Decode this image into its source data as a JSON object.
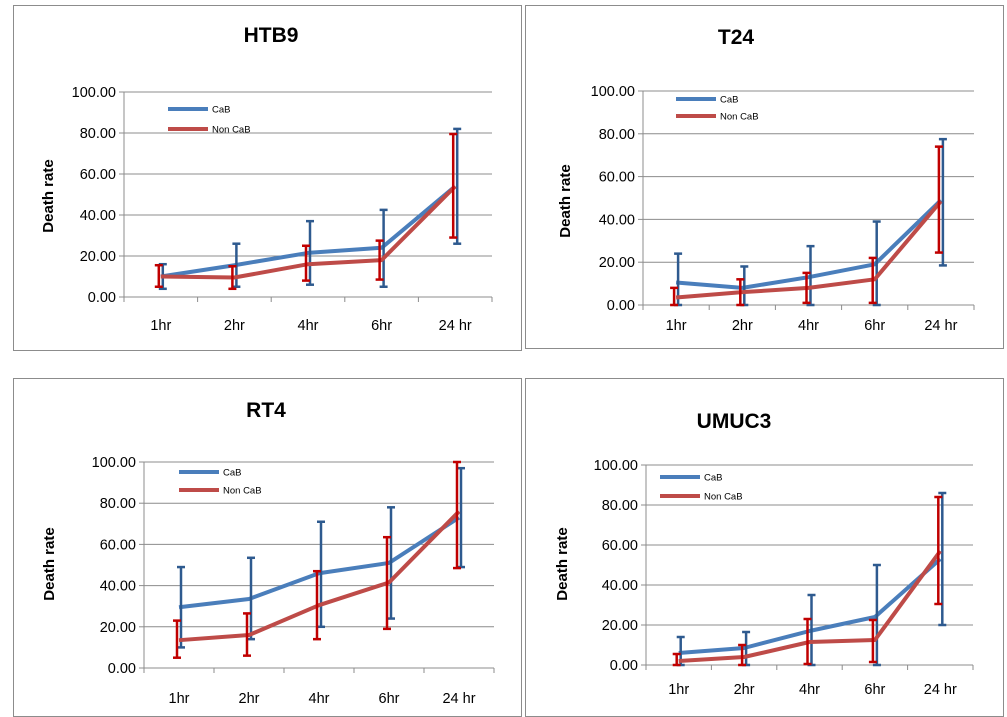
{
  "series_colors": {
    "CaB": "#4a7ebb",
    "Non CaB": "#be4b48"
  },
  "chart_data": [
    {
      "type": "line",
      "title": "HTB9",
      "ylabel": "Death rate",
      "xlabel": "",
      "categories": [
        "1hr",
        "2hr",
        "4hr",
        "6hr",
        "24 hr"
      ],
      "yticks": [
        "0.00",
        "20.00",
        "40.00",
        "60.00",
        "80.00",
        "100.00"
      ],
      "ylim": [
        0,
        100
      ],
      "grid": "horizontal",
      "legend": "top-left",
      "series": [
        {
          "name": "CaB",
          "values": [
            10,
            15.5,
            21.5,
            24,
            54
          ],
          "err_lower": [
            4,
            5,
            6,
            5,
            26
          ],
          "err_upper": [
            16,
            26,
            37,
            42.5,
            82
          ]
        },
        {
          "name": "Non CaB",
          "values": [
            10,
            9.5,
            16,
            18,
            54
          ],
          "err_lower": [
            5,
            4,
            8,
            8.5,
            29
          ],
          "err_upper": [
            15.5,
            15,
            25,
            27.5,
            79.5
          ]
        }
      ]
    },
    {
      "type": "line",
      "title": "T24",
      "ylabel": "Death rate",
      "xlabel": "",
      "categories": [
        "1hr",
        "2hr",
        "4hr",
        "6hr",
        "24 hr"
      ],
      "yticks": [
        "0.00",
        "20.00",
        "40.00",
        "60.00",
        "80.00",
        "100.00"
      ],
      "ylim": [
        0,
        100
      ],
      "grid": "horizontal",
      "legend": "top-left",
      "series": [
        {
          "name": "CaB",
          "values": [
            10.5,
            8,
            13,
            19,
            49
          ],
          "err_lower": [
            0,
            0,
            0,
            0,
            18.5
          ],
          "err_upper": [
            24,
            18,
            27.5,
            39,
            77.5
          ]
        },
        {
          "name": "Non CaB",
          "values": [
            3.5,
            6,
            8,
            12,
            48.5
          ],
          "err_lower": [
            0,
            0,
            1,
            1,
            24.5
          ],
          "err_upper": [
            8,
            12,
            15,
            22,
            74
          ]
        }
      ]
    },
    {
      "type": "line",
      "title": "RT4",
      "ylabel": "Death rate",
      "xlabel": "",
      "categories": [
        "1hr",
        "2hr",
        "4hr",
        "6hr",
        "24 hr"
      ],
      "yticks": [
        "0.00",
        "20.00",
        "40.00",
        "60.00",
        "80.00",
        "100.00"
      ],
      "ylim": [
        0,
        100
      ],
      "grid": "horizontal",
      "legend": "top-left",
      "series": [
        {
          "name": "CaB",
          "values": [
            29.5,
            33.5,
            46,
            51,
            73
          ],
          "err_lower": [
            10,
            14,
            20,
            24,
            49
          ],
          "err_upper": [
            49,
            53.5,
            71,
            78,
            97
          ]
        },
        {
          "name": "Non CaB",
          "values": [
            13.5,
            16,
            30.5,
            41.5,
            76
          ],
          "err_lower": [
            5,
            6,
            14,
            19,
            48.5
          ],
          "err_upper": [
            23,
            26.5,
            47,
            63.5,
            100
          ]
        }
      ]
    },
    {
      "type": "line",
      "title": "UMUC3",
      "ylabel": "Death rate",
      "xlabel": "",
      "categories": [
        "1hr",
        "2hr",
        "4hr",
        "6hr",
        "24 hr"
      ],
      "yticks": [
        "0.00",
        "20.00",
        "40.00",
        "60.00",
        "80.00",
        "100.00"
      ],
      "ylim": [
        0,
        100
      ],
      "grid": "horizontal",
      "legend": "top-left",
      "series": [
        {
          "name": "CaB",
          "values": [
            6,
            8.5,
            17,
            24,
            53
          ],
          "err_lower": [
            0,
            0,
            0,
            0,
            20
          ],
          "err_upper": [
            14,
            16.5,
            35,
            50,
            86
          ]
        },
        {
          "name": "Non CaB",
          "values": [
            2,
            4,
            11.5,
            12.5,
            57
          ],
          "err_lower": [
            0,
            0,
            0.5,
            1.5,
            30.5
          ],
          "err_upper": [
            5.5,
            10,
            23,
            22.5,
            84
          ]
        }
      ]
    }
  ]
}
